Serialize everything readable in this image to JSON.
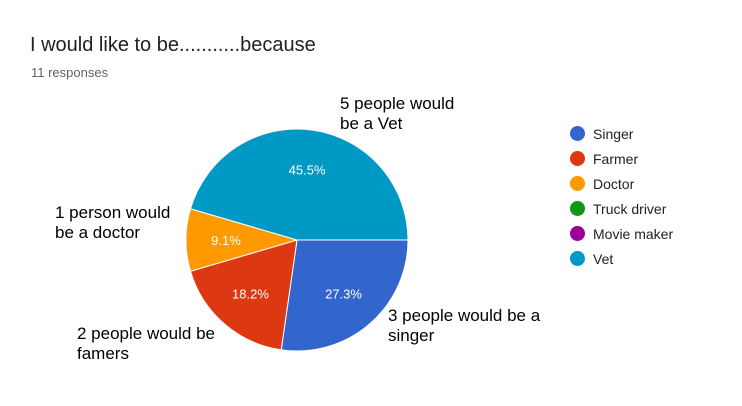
{
  "title": "I would like to be...........because",
  "subtitle": "11 responses",
  "chart_data": {
    "type": "pie",
    "categories": [
      "Singer",
      "Farmer",
      "Doctor",
      "Truck driver",
      "Movie maker",
      "Vet"
    ],
    "values": [
      27.3,
      18.2,
      9.1,
      0,
      0,
      45.5
    ],
    "labels": [
      "27.3%",
      "18.2%",
      "9.1%",
      "",
      "",
      "45.5%"
    ],
    "colors": [
      "#3366cc",
      "#dc3912",
      "#ff9900",
      "#109618",
      "#990099",
      "#0099c6"
    ],
    "legend_position": "right"
  },
  "annotations": {
    "vet": "5 people would\nbe a Vet",
    "doctor": "1 person would\nbe a doctor",
    "farmer": "2 people would be\nfamers",
    "singer": "3 people would be a\nsinger"
  }
}
